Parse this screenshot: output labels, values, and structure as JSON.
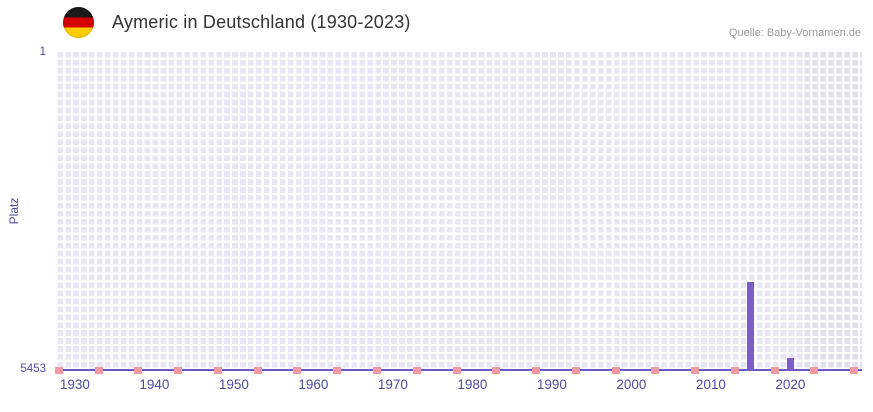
{
  "header": {
    "title": "Aymeric in Deutschland (1930-2023)",
    "source": "Quelle: Baby-Vornamen.de",
    "flag_icon": "german-flag"
  },
  "chart_data": {
    "type": "bar",
    "title": "Aymeric in Deutschland (1930-2023)",
    "source": "Quelle: Baby-Vornamen.de",
    "ylabel": "Platz",
    "y_axis": {
      "min": 1,
      "max": 5453,
      "inverted": true,
      "ticks": [
        "1",
        "5453"
      ]
    },
    "x_axis": {
      "min": 1927.5,
      "max": 2029,
      "ticks": [
        1930,
        1940,
        1950,
        1960,
        1970,
        1980,
        1990,
        2000,
        2010,
        2020
      ]
    },
    "series": [
      {
        "name": "Platz",
        "points": [
          {
            "year": 2015,
            "rank": 3950
          },
          {
            "year": 2020,
            "rank": 5250
          }
        ]
      }
    ],
    "pink_marker_years": [
      1928,
      1933,
      1938,
      1943,
      1948,
      1953,
      1958,
      1963,
      1968,
      1973,
      1978,
      1983,
      1988,
      1993,
      1998,
      2003,
      2008,
      2013,
      2018,
      2023,
      2028
    ],
    "plot_band": {
      "from": 2021.5,
      "to_axis_end": true
    },
    "grid": true,
    "legend": false,
    "colors": {
      "bar": "#7a5dc7",
      "marker": "#f09ba3",
      "axis_line": "#6a57c8",
      "tick_label": "#4c4c9e",
      "plot_bg": "#e9e6f4",
      "band_bg": "#e2e0e9",
      "grid_line": "#ffffff",
      "title": "#333333",
      "source": "#999999"
    }
  }
}
